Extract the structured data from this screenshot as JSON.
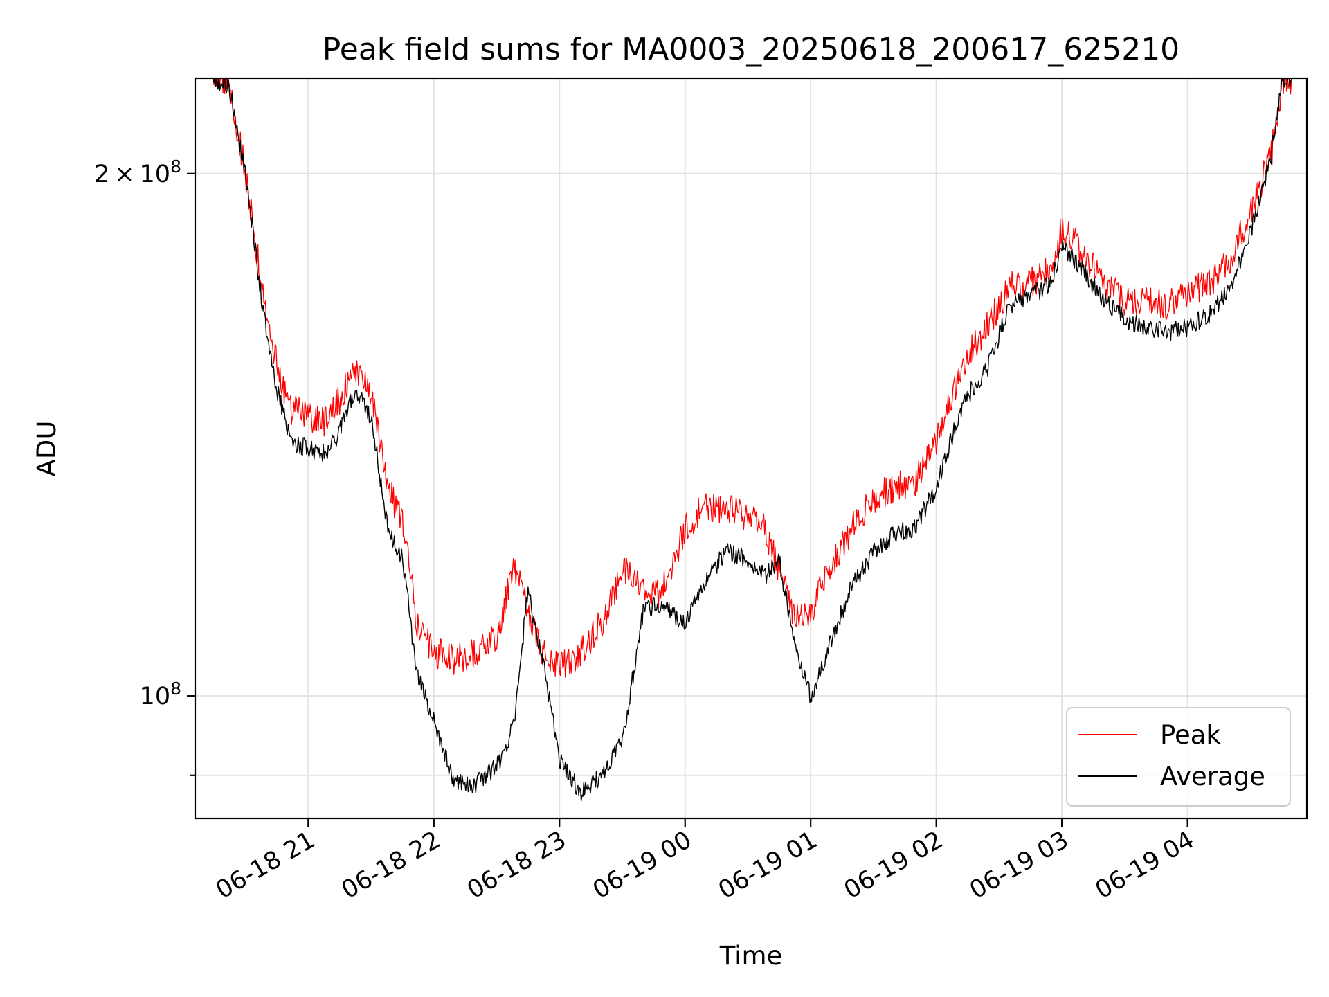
{
  "chart_data": {
    "type": "line",
    "title": "Peak field sums for MA0003_20250618_200617_625210",
    "xlabel": "Time",
    "ylabel": "ADU",
    "x_axis": {
      "type": "time",
      "range": [
        "2025-06-18 20:06",
        "2025-06-19 04:57"
      ],
      "ticks": [
        {
          "t": "2025-06-18 21:00",
          "label": "06-18 21"
        },
        {
          "t": "2025-06-18 22:00",
          "label": "06-18 22"
        },
        {
          "t": "2025-06-18 23:00",
          "label": "06-18 23"
        },
        {
          "t": "2025-06-19 00:00",
          "label": "06-19 00"
        },
        {
          "t": "2025-06-19 01:00",
          "label": "06-19 01"
        },
        {
          "t": "2025-06-19 02:00",
          "label": "06-19 02"
        },
        {
          "t": "2025-06-19 03:00",
          "label": "06-19 03"
        },
        {
          "t": "2025-06-19 04:00",
          "label": "06-19 04"
        }
      ],
      "tick_label_rotation_deg": 30
    },
    "y_axis": {
      "scale": "log",
      "range": [
        85000000.0,
        227000000.0
      ],
      "major_ticks": [
        {
          "value": 100000000.0,
          "mantissa": "",
          "exponent": "8"
        },
        {
          "value": 200000000.0,
          "mantissa": "2",
          "exponent": "8"
        }
      ],
      "minor_ticks": [
        90000000.0
      ]
    },
    "grid": true,
    "legend": {
      "placement": "lower right"
    },
    "series": [
      {
        "name": "Peak",
        "color": "#ff0000",
        "x": [
          "2025-06-18 20:06",
          "2025-06-18 20:15",
          "2025-06-18 20:22",
          "2025-06-18 20:30",
          "2025-06-18 20:38",
          "2025-06-18 20:45",
          "2025-06-18 20:52",
          "2025-06-18 21:00",
          "2025-06-18 21:08",
          "2025-06-18 21:15",
          "2025-06-18 21:22",
          "2025-06-18 21:30",
          "2025-06-18 21:38",
          "2025-06-18 21:45",
          "2025-06-18 21:52",
          "2025-06-18 22:00",
          "2025-06-18 22:10",
          "2025-06-18 22:20",
          "2025-06-18 22:30",
          "2025-06-18 22:38",
          "2025-06-18 22:45",
          "2025-06-18 22:52",
          "2025-06-18 23:00",
          "2025-06-18 23:10",
          "2025-06-18 23:20",
          "2025-06-18 23:30",
          "2025-06-18 23:40",
          "2025-06-18 23:48",
          "2025-06-19 00:00",
          "2025-06-19 00:10",
          "2025-06-19 00:20",
          "2025-06-19 00:30",
          "2025-06-19 00:38",
          "2025-06-19 00:45",
          "2025-06-19 00:52",
          "2025-06-19 01:00",
          "2025-06-19 01:10",
          "2025-06-19 01:20",
          "2025-06-19 01:30",
          "2025-06-19 01:40",
          "2025-06-19 01:50",
          "2025-06-19 02:00",
          "2025-06-19 02:10",
          "2025-06-19 02:15",
          "2025-06-19 02:25",
          "2025-06-19 02:35",
          "2025-06-19 02:45",
          "2025-06-19 02:55",
          "2025-06-19 03:00",
          "2025-06-19 03:10",
          "2025-06-19 03:20",
          "2025-06-19 03:30",
          "2025-06-19 03:40",
          "2025-06-19 03:50",
          "2025-06-19 04:00",
          "2025-06-19 04:10",
          "2025-06-19 04:20",
          "2025-06-19 04:30",
          "2025-06-19 04:40",
          "2025-06-19 04:45",
          "2025-06-19 04:50",
          "2025-06-19 04:57"
        ],
        "values": [
          227000000.0,
          227000000.0,
          225000000.0,
          200000000.0,
          172000000.0,
          155000000.0,
          146000000.0,
          145000000.0,
          144000000.0,
          148000000.0,
          155000000.0,
          150000000.0,
          132000000.0,
          126000000.0,
          110000000.0,
          106000000.0,
          105000000.0,
          106000000.0,
          108000000.0,
          119000000.0,
          112000000.0,
          106000000.0,
          104000000.0,
          106000000.0,
          110000000.0,
          118000000.0,
          116000000.0,
          114000000.0,
          125000000.0,
          129000000.0,
          128000000.0,
          127000000.0,
          125000000.0,
          118000000.0,
          111000000.0,
          112000000.0,
          119000000.0,
          125000000.0,
          130000000.0,
          132000000.0,
          133000000.0,
          140000000.0,
          152000000.0,
          157000000.0,
          164000000.0,
          172000000.0,
          173000000.0,
          176000000.0,
          186000000.0,
          180000000.0,
          173000000.0,
          169000000.0,
          169000000.0,
          168000000.0,
          170000000.0,
          173000000.0,
          178000000.0,
          190000000.0,
          205000000.0,
          225000000.0,
          227000000.0,
          227000000.0
        ]
      },
      {
        "name": "Average",
        "color": "#000000",
        "x": [
          "2025-06-18 20:06",
          "2025-06-18 20:15",
          "2025-06-18 20:22",
          "2025-06-18 20:30",
          "2025-06-18 20:38",
          "2025-06-18 20:45",
          "2025-06-18 20:52",
          "2025-06-18 21:00",
          "2025-06-18 21:08",
          "2025-06-18 21:15",
          "2025-06-18 21:22",
          "2025-06-18 21:30",
          "2025-06-18 21:38",
          "2025-06-18 21:45",
          "2025-06-18 21:52",
          "2025-06-18 22:00",
          "2025-06-18 22:10",
          "2025-06-18 22:20",
          "2025-06-18 22:30",
          "2025-06-18 22:38",
          "2025-06-18 22:45",
          "2025-06-18 22:52",
          "2025-06-18 23:00",
          "2025-06-18 23:10",
          "2025-06-18 23:20",
          "2025-06-18 23:30",
          "2025-06-18 23:40",
          "2025-06-18 23:48",
          "2025-06-19 00:00",
          "2025-06-19 00:10",
          "2025-06-19 00:20",
          "2025-06-19 00:30",
          "2025-06-19 00:38",
          "2025-06-19 00:45",
          "2025-06-19 00:52",
          "2025-06-19 01:00",
          "2025-06-19 01:10",
          "2025-06-19 01:20",
          "2025-06-19 01:30",
          "2025-06-19 01:40",
          "2025-06-19 01:50",
          "2025-06-19 02:00",
          "2025-06-19 02:10",
          "2025-06-19 02:15",
          "2025-06-19 02:25",
          "2025-06-19 02:35",
          "2025-06-19 02:45",
          "2025-06-19 02:55",
          "2025-06-19 03:00",
          "2025-06-19 03:10",
          "2025-06-19 03:20",
          "2025-06-19 03:30",
          "2025-06-19 03:40",
          "2025-06-19 03:50",
          "2025-06-19 04:00",
          "2025-06-19 04:10",
          "2025-06-19 04:20",
          "2025-06-19 04:30",
          "2025-06-19 04:40",
          "2025-06-19 04:45",
          "2025-06-19 04:50",
          "2025-06-19 04:57"
        ],
        "values": [
          227000000.0,
          227000000.0,
          225000000.0,
          200000000.0,
          168000000.0,
          150000000.0,
          140000000.0,
          139000000.0,
          138000000.0,
          142000000.0,
          150000000.0,
          145000000.0,
          125000000.0,
          120000000.0,
          103000000.0,
          97000000.0,
          89000000.0,
          89000000.0,
          91000000.0,
          96000000.0,
          115000000.0,
          105000000.0,
          92000000.0,
          88000000.0,
          90000000.0,
          94000000.0,
          112000000.0,
          113000000.0,
          110000000.0,
          117000000.0,
          121000000.0,
          120000000.0,
          117000000.0,
          120000000.0,
          107000000.0,
          100000000.0,
          108000000.0,
          116000000.0,
          121000000.0,
          124000000.0,
          125000000.0,
          132000000.0,
          144000000.0,
          149000000.0,
          155000000.0,
          168000000.0,
          170000000.0,
          173000000.0,
          182000000.0,
          176000000.0,
          169000000.0,
          165000000.0,
          163000000.0,
          162000000.0,
          163000000.0,
          166000000.0,
          171000000.0,
          185000000.0,
          205000000.0,
          225000000.0,
          227000000.0,
          227000000.0
        ]
      }
    ]
  }
}
